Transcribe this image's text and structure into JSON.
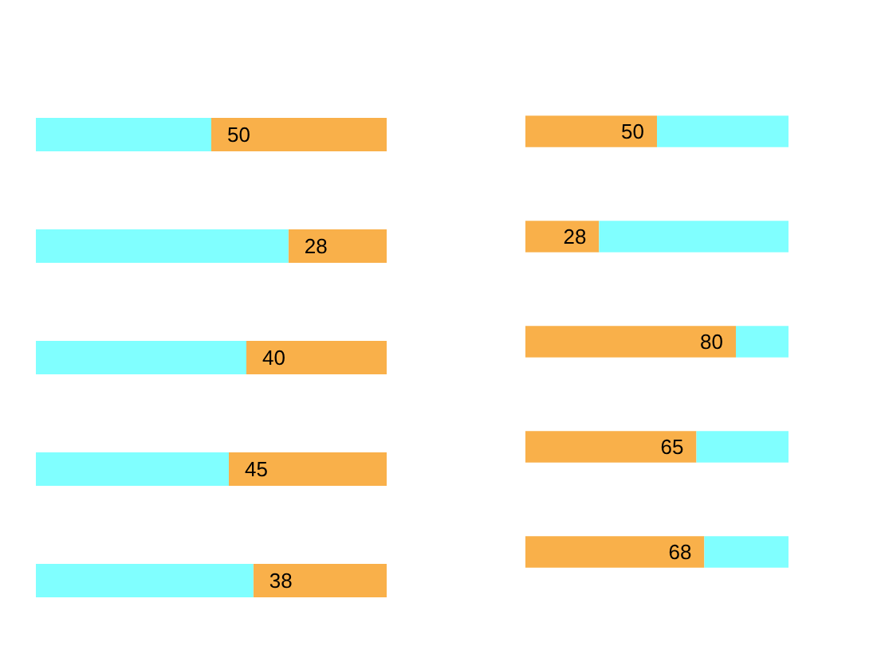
{
  "chart_data": [
    {
      "type": "bar",
      "orientation": "horizontal",
      "stacked": true,
      "categories": [
        null,
        null,
        null,
        null,
        null
      ],
      "xlim": [
        100,
        0
      ],
      "tick_labels": false,
      "grid": false,
      "series": [
        {
          "color": "#f9b04a",
          "values": [
            50,
            28,
            40,
            45,
            38
          ],
          "value_labels": [
            "50",
            "28",
            "40",
            "45",
            "38"
          ]
        },
        {
          "color": "#80ffff",
          "values": [
            50,
            72,
            60,
            55,
            62
          ]
        }
      ]
    },
    {
      "type": "bar",
      "orientation": "horizontal",
      "stacked": true,
      "categories": [
        null,
        null,
        null,
        null,
        null
      ],
      "xlim": [
        0,
        100
      ],
      "tick_labels": false,
      "grid": false,
      "series": [
        {
          "color": "#f9b04a",
          "values": [
            50,
            28,
            80,
            65,
            68
          ],
          "value_labels": [
            "50",
            "28",
            "80",
            "65",
            "68"
          ]
        },
        {
          "color": "#80ffff",
          "values": [
            50,
            72,
            20,
            35,
            32
          ]
        }
      ]
    }
  ]
}
